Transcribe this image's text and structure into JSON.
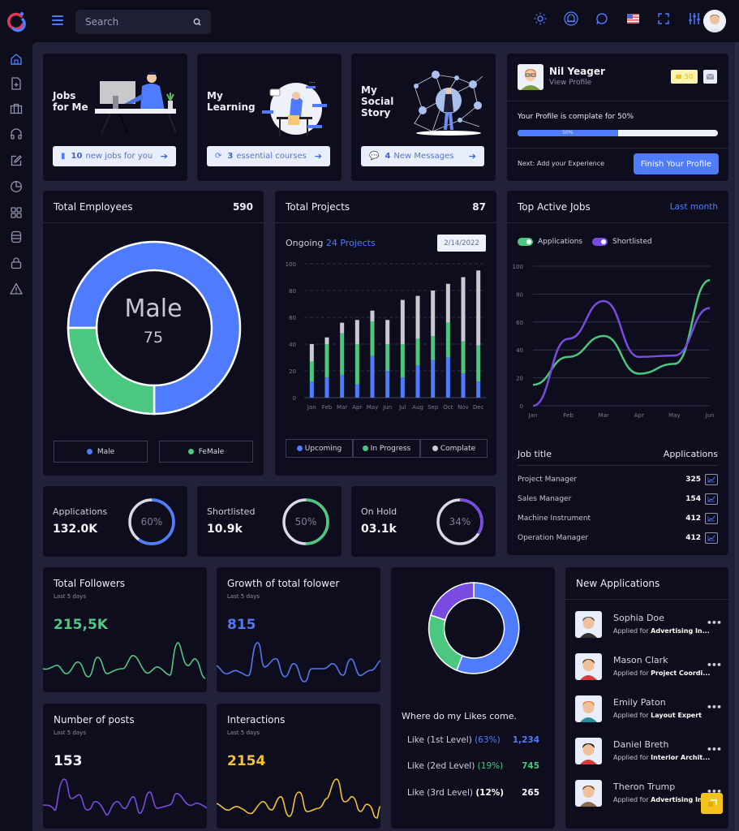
{
  "topbar": {
    "search_placeholder": "Search",
    "icons": [
      "sun-icon",
      "bell-icon",
      "chat-icon",
      "us-flag-icon",
      "fullscreen-icon",
      "sliders-icon"
    ]
  },
  "sidebar": {
    "items": [
      {
        "name": "home",
        "icon": "home-icon"
      },
      {
        "name": "add-file",
        "icon": "file-plus-icon"
      },
      {
        "name": "jobs",
        "icon": "briefcase-icon"
      },
      {
        "name": "support",
        "icon": "headphones-icon"
      },
      {
        "name": "edit",
        "icon": "edit-icon"
      },
      {
        "name": "reports",
        "icon": "pie-chart-icon"
      },
      {
        "name": "apps",
        "icon": "grid-icon"
      },
      {
        "name": "database",
        "icon": "database-icon"
      },
      {
        "name": "security",
        "icon": "lock-icon"
      },
      {
        "name": "alerts",
        "icon": "warning-icon"
      }
    ]
  },
  "promos": [
    {
      "title_line1": "Jobs",
      "title_line2": "for Me",
      "title_line3": "",
      "btn_count": "10",
      "btn_text": "new jobs for you"
    },
    {
      "title_line1": "My",
      "title_line2": "Learning",
      "title_line3": "",
      "btn_count": "3",
      "btn_text": "essential courses"
    },
    {
      "title_line1": "My",
      "title_line2": "Social",
      "title_line3": "Story",
      "btn_count": "4",
      "btn_text": "New Messages"
    }
  ],
  "profile": {
    "name": "Nil Yeager",
    "link": "View Profile",
    "coins": "50",
    "complete_text": "Your Profile is complate for 50%",
    "progress_label": "50%",
    "progress": 50,
    "next_text": "Next: Add your Experience",
    "finish_button": "Finish Your Profile"
  },
  "employees": {
    "title": "Total Employees",
    "total": "590",
    "center_label": "Male",
    "center_value": "75",
    "legend": [
      "Male",
      "FeMale"
    ]
  },
  "projects": {
    "title": "Total Projects",
    "total": "87",
    "ongoing_prefix": "Ongoing",
    "ongoing_value": "24 Projects",
    "date": "2/14/2022",
    "legend": [
      "Upcoming",
      "In Progress",
      "Complate"
    ]
  },
  "active_jobs": {
    "title": "Top Active Jobs",
    "period": "Last month",
    "toggles": [
      "Applications",
      "Shortlisted"
    ],
    "table_header": [
      "Job title",
      "Applications"
    ],
    "rows": [
      {
        "title": "Project Manager",
        "value": "325"
      },
      {
        "title": "Sales Manager",
        "value": "154"
      },
      {
        "title": "Machine Instrument",
        "value": "412"
      },
      {
        "title": "Operation Manager",
        "value": "412"
      }
    ]
  },
  "stats": [
    {
      "label": "Applications",
      "value": "132.0K",
      "percent": "60%",
      "color": "#4f7cff"
    },
    {
      "label": "Shortlisted",
      "value": "10.9k",
      "percent": "50%",
      "color": "#4cc77f"
    },
    {
      "label": "On Hold",
      "value": "03.1k",
      "percent": "34%",
      "color": "#7a4be0"
    }
  ],
  "sparks": [
    {
      "title": "Total Followers",
      "sub": "Last 5 days",
      "value": "215,5K",
      "color": "#52c784"
    },
    {
      "title": "Growth of total folower",
      "sub": "Last 5 days",
      "value": "815",
      "color": "#5478ee"
    },
    {
      "title": "Number of posts",
      "sub": "Last 5 days",
      "value": "153",
      "color": "#7a4be0"
    },
    {
      "title": "Interactions",
      "sub": "Last 5 days",
      "value": "2154",
      "color": "#f1c232"
    }
  ],
  "likes": {
    "title": "Where do my Likes come.",
    "rows": [
      {
        "label": "Like (1st Level)",
        "pct": "(63%)",
        "value": "1,234",
        "color": "#4f7cff"
      },
      {
        "label": "Like (2ed Level)",
        "pct": "(19%)",
        "value": "745",
        "color": "#4cc77f"
      },
      {
        "label": "Like (3rd Level)",
        "pct": "(12%)",
        "value": "265",
        "color": "#ffffff"
      }
    ]
  },
  "new_applications": {
    "title": "New Applications",
    "applied_prefix": "Applied for",
    "items": [
      {
        "name": "Sophia Doe",
        "role": "Advertising In..."
      },
      {
        "name": "Mason Clark",
        "role": "Project Coordi..."
      },
      {
        "name": "Emily Paton",
        "role": "Layout Expert"
      },
      {
        "name": "Daniel Breth",
        "role": "Interior Archit..."
      },
      {
        "name": "Theron Trump",
        "role": "Advertising In..."
      }
    ]
  },
  "colors": {
    "accent": "#4f7cff",
    "green": "#4cc77f",
    "purple": "#7a4be0",
    "yellow": "#f1c232",
    "card": "#0d0d1d",
    "bg": "#21213a"
  },
  "chart_data": [
    {
      "type": "pie",
      "title": "Total Employees",
      "categories": [
        "Male",
        "FeMale"
      ],
      "values": [
        75,
        25
      ]
    },
    {
      "type": "bar",
      "title": "Total Projects",
      "stacked": true,
      "categories": [
        "Jan",
        "Feb",
        "Mar",
        "Apr",
        "May",
        "Jun",
        "Jul",
        "Aug",
        "Sep",
        "Oct",
        "Nov",
        "Dec"
      ],
      "series": [
        {
          "name": "Upcoming",
          "values": [
            12,
            15,
            17,
            10,
            31,
            20,
            15,
            24,
            28,
            30,
            18,
            12
          ]
        },
        {
          "name": "In Progress",
          "values": [
            15,
            25,
            31,
            30,
            26,
            20,
            25,
            20,
            18,
            26,
            24,
            27
          ]
        },
        {
          "name": "Complate",
          "values": [
            13,
            5,
            8,
            18,
            8,
            18,
            33,
            32,
            34,
            29,
            48,
            56
          ]
        }
      ],
      "ylim": [
        0,
        100
      ],
      "yticks": [
        0,
        20,
        40,
        60,
        80,
        100
      ]
    },
    {
      "type": "line",
      "title": "Top Active Jobs",
      "categories": [
        "Jan",
        "Feb",
        "Mar",
        "Apr",
        "May",
        "Jun"
      ],
      "series": [
        {
          "name": "Applications",
          "values": [
            15,
            35,
            50,
            23,
            30,
            90
          ]
        },
        {
          "name": "Shortlisted",
          "values": [
            0,
            48,
            75,
            35,
            36,
            70
          ]
        }
      ],
      "ylim": [
        0,
        100
      ],
      "yticks": [
        0,
        20,
        40,
        60,
        80,
        100
      ]
    },
    {
      "type": "pie",
      "title": "Where do my Likes come.",
      "categories": [
        "Like (1st Level)",
        "Like (2ed Level)",
        "Like (3rd Level)"
      ],
      "values": [
        63,
        19,
        12
      ]
    }
  ]
}
